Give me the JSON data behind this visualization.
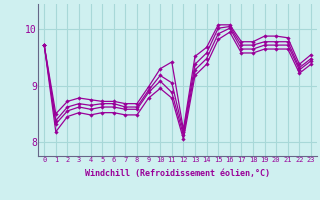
{
  "xlabel": "Windchill (Refroidissement éolien,°C)",
  "bg_color": "#cff0f0",
  "grid_color": "#a8d8d8",
  "line_color": "#990099",
  "spine_color": "#666688",
  "xlim": [
    -0.5,
    23.5
  ],
  "ylim": [
    7.75,
    10.45
  ],
  "yticks": [
    8,
    9,
    10
  ],
  "xticks": [
    0,
    1,
    2,
    3,
    4,
    5,
    6,
    7,
    8,
    9,
    10,
    11,
    12,
    13,
    14,
    15,
    16,
    17,
    18,
    19,
    20,
    21,
    22,
    23
  ],
  "series": [
    [
      9.72,
      8.5,
      8.72,
      8.78,
      8.75,
      8.72,
      8.72,
      8.68,
      8.68,
      8.98,
      9.3,
      9.42,
      8.22,
      9.52,
      9.68,
      10.08,
      10.08,
      9.78,
      9.78,
      9.88,
      9.88,
      9.85,
      9.38,
      9.55
    ],
    [
      9.72,
      8.38,
      8.62,
      8.68,
      8.65,
      8.68,
      8.68,
      8.62,
      8.62,
      8.92,
      9.18,
      9.05,
      8.18,
      9.38,
      9.58,
      10.02,
      10.05,
      9.72,
      9.72,
      9.78,
      9.78,
      9.78,
      9.32,
      9.48
    ],
    [
      9.72,
      8.32,
      8.55,
      8.62,
      8.58,
      8.62,
      8.62,
      8.58,
      8.58,
      8.88,
      9.08,
      8.88,
      8.12,
      9.28,
      9.48,
      9.92,
      10.02,
      9.65,
      9.65,
      9.72,
      9.72,
      9.72,
      9.28,
      9.44
    ],
    [
      9.72,
      8.18,
      8.45,
      8.52,
      8.48,
      8.52,
      8.52,
      8.48,
      8.48,
      8.78,
      8.95,
      8.78,
      8.05,
      9.18,
      9.38,
      9.82,
      9.95,
      9.58,
      9.58,
      9.65,
      9.65,
      9.65,
      9.22,
      9.38
    ]
  ]
}
